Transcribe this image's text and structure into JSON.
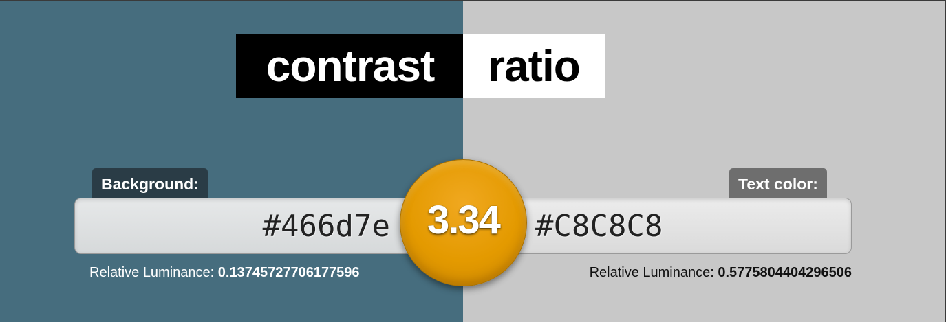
{
  "title": {
    "left": "contrast",
    "right": "ratio"
  },
  "background": {
    "tab_label": "Background:",
    "value": "#466d7e",
    "luminance_label": "Relative Luminance:",
    "luminance_value": "0.13745727706177596"
  },
  "text_color": {
    "tab_label": "Text color:",
    "value": "#C8C8C8",
    "luminance_label": "Relative Luminance:",
    "luminance_value": "0.5775804404296506"
  },
  "ratio": {
    "value": "3.34"
  },
  "colors": {
    "background_color": "#466d7e",
    "text_color": "#c8c8c8",
    "ratio_badge": "#e49a00",
    "bg_tab": "#2a3c46",
    "fg_tab": "#6e6e6e"
  }
}
